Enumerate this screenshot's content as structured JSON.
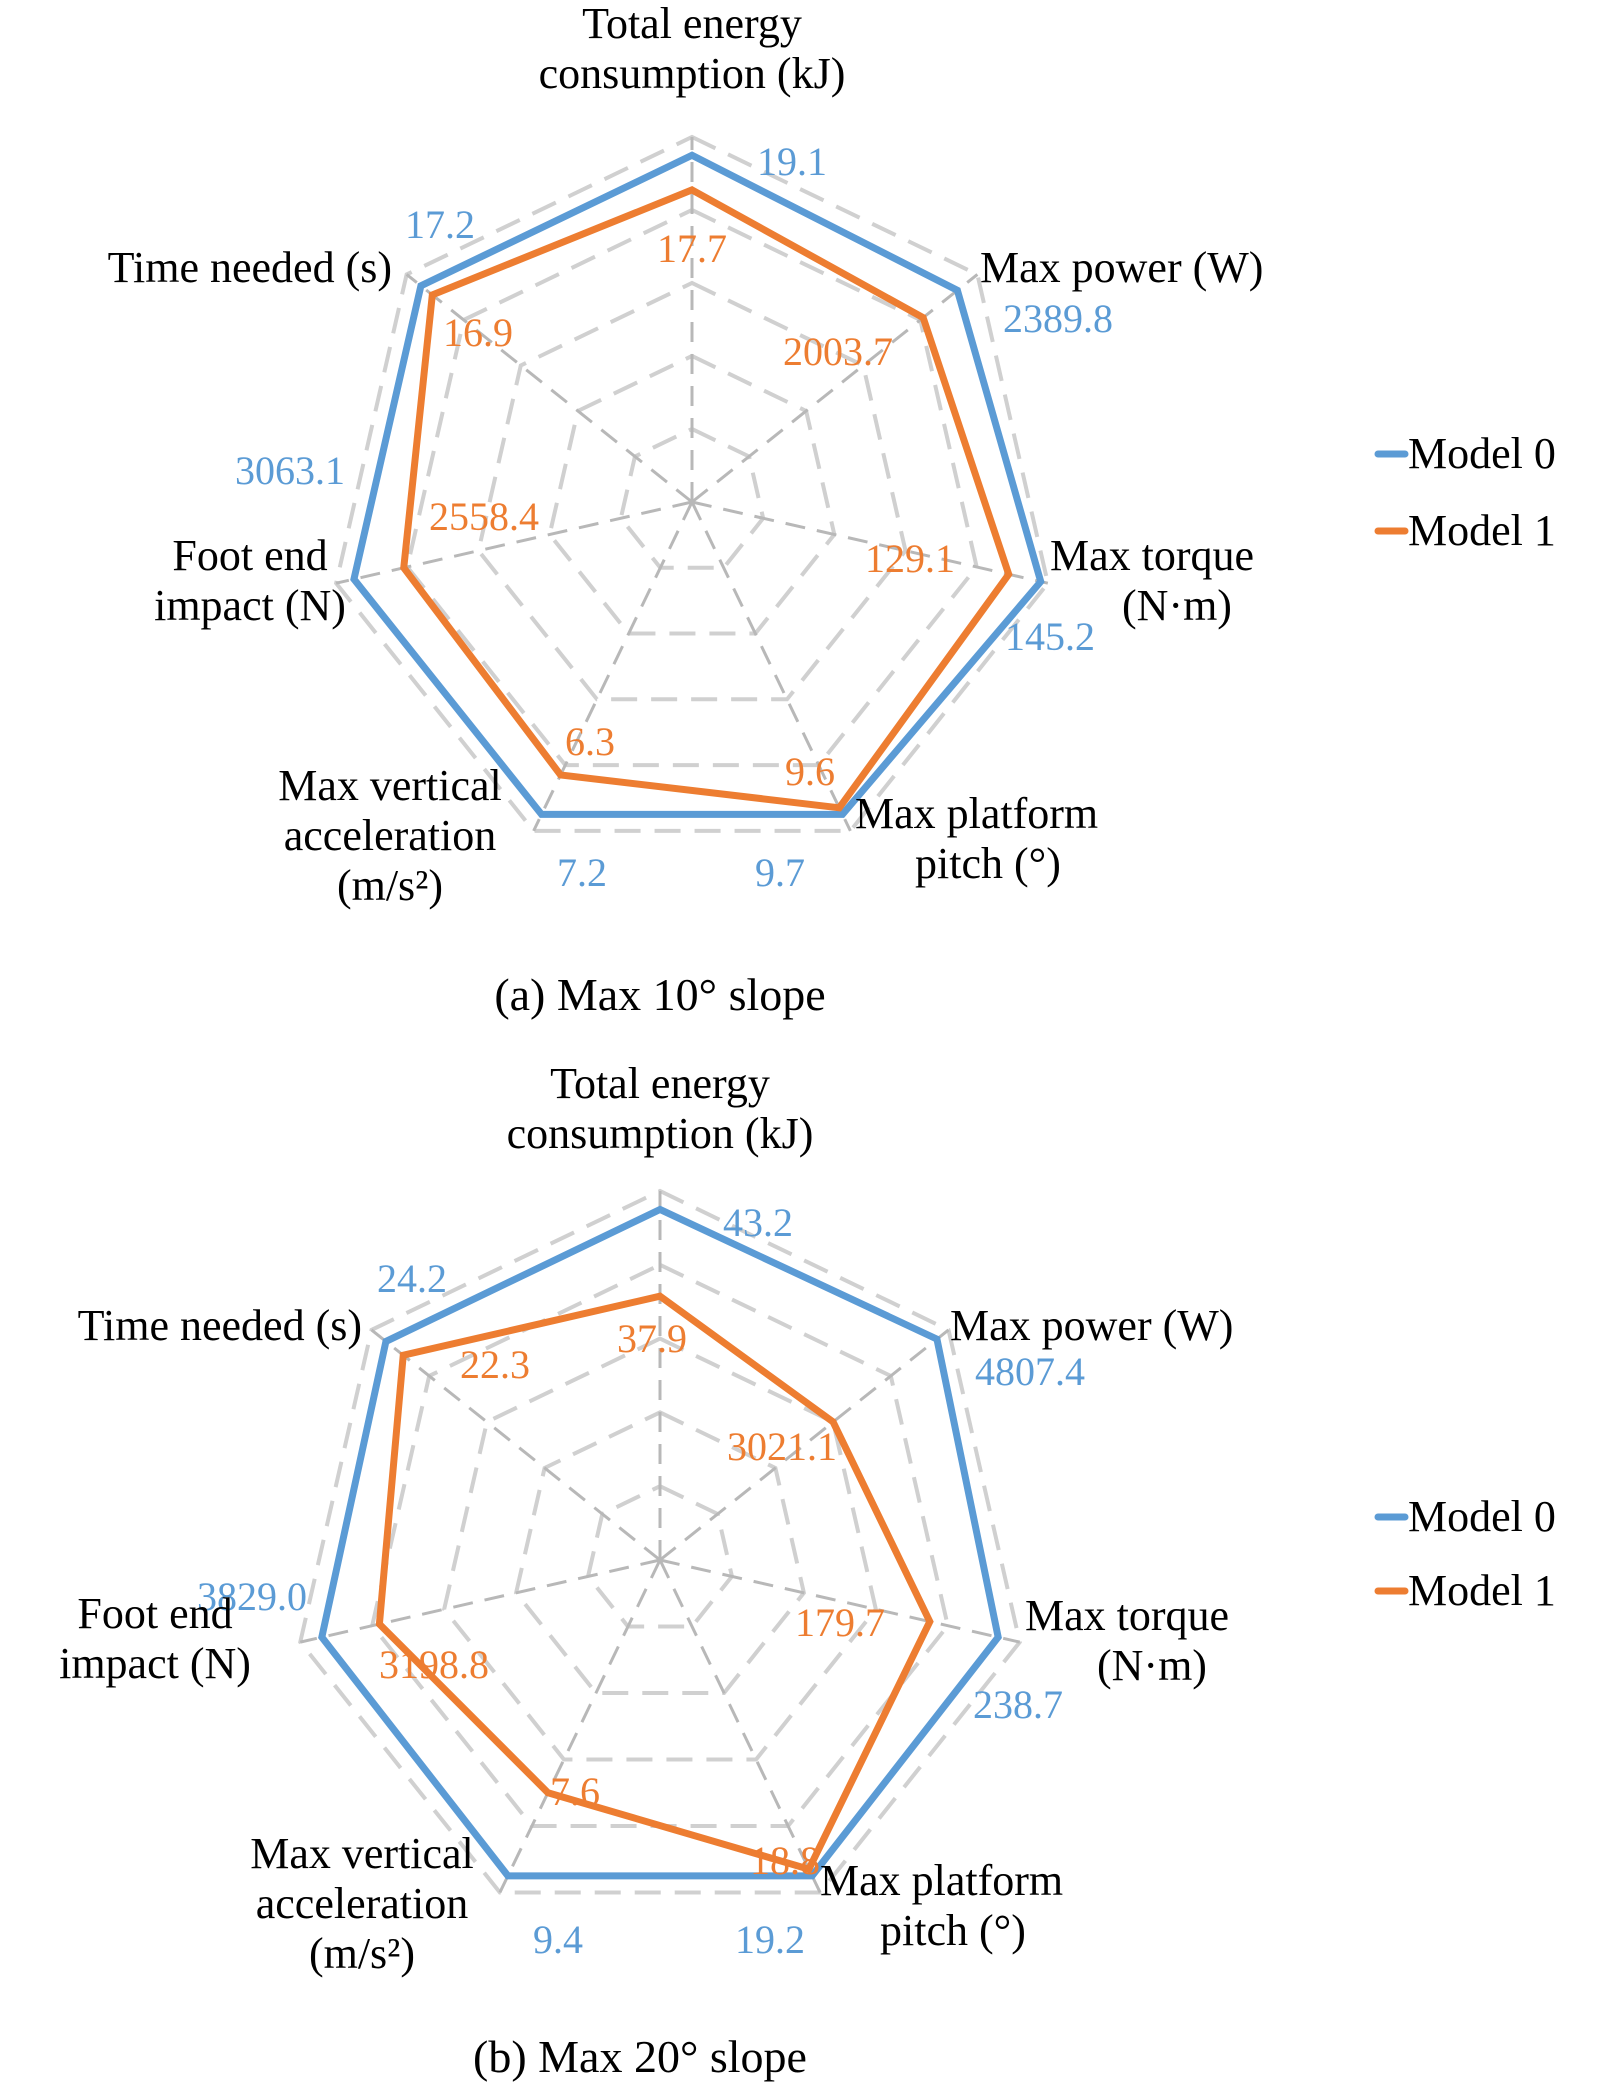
{
  "colors": {
    "model0": "#5B9BD5",
    "model1": "#ED7D31",
    "grid": "#D0D0D0",
    "spoke": "#B8B8B8"
  },
  "chart_data": [
    {
      "type": "radar",
      "caption": "(a) Max 10° slope",
      "axes": [
        {
          "label": [
            "Total energy",
            "consumption (kJ)"
          ]
        },
        {
          "label": [
            "Max power (W)"
          ]
        },
        {
          "label": [
            "Max torque",
            "(N·m)"
          ]
        },
        {
          "label": [
            "Max platform",
            "pitch (°)"
          ]
        },
        {
          "label": [
            "Max vertical",
            "acceleration",
            "(m/s²)"
          ]
        },
        {
          "label": [
            "Foot end",
            "impact (N)"
          ]
        },
        {
          "label": [
            "Time needed (s)"
          ]
        }
      ],
      "rings": 5,
      "grid": true,
      "legend_position": "right",
      "series": [
        {
          "name": "Model 0",
          "color_key": "model0",
          "values": [
            "19.1",
            "2389.8",
            "145.2",
            "9.7",
            "7.2",
            "3063.1",
            "17.2"
          ],
          "normalized": [
            0.95,
            0.93,
            0.98,
            0.95,
            0.95,
            0.95,
            0.95
          ]
        },
        {
          "name": "Model 1",
          "color_key": "model1",
          "values": [
            "17.7",
            "2003.7",
            "129.1",
            "9.6",
            "6.3",
            "2558.4",
            "16.9"
          ],
          "normalized": [
            0.855,
            0.81,
            0.89,
            0.93,
            0.83,
            0.81,
            0.91
          ]
        }
      ]
    },
    {
      "type": "radar",
      "caption": "(b) Max 20° slope",
      "axes": [
        {
          "label": [
            "Total energy",
            "consumption (kJ)"
          ]
        },
        {
          "label": [
            "Max power (W)"
          ]
        },
        {
          "label": [
            "Max torque",
            "(N·m)"
          ]
        },
        {
          "label": [
            "Max platform",
            "pitch (°)"
          ]
        },
        {
          "label": [
            "Max vertical",
            "acceleration",
            "(m/s²)"
          ]
        },
        {
          "label": [
            "Foot end",
            "impact (N)"
          ]
        },
        {
          "label": [
            "Time needed (s)"
          ]
        }
      ],
      "rings": 5,
      "grid": true,
      "legend_position": "right",
      "series": [
        {
          "name": "Model 0",
          "color_key": "model0",
          "values": [
            "43.2",
            "4807.4",
            "238.7",
            "19.2",
            "9.4",
            "3829.0",
            "24.2"
          ],
          "normalized": [
            0.95,
            0.96,
            0.94,
            0.95,
            0.95,
            0.94,
            0.95
          ]
        },
        {
          "name": "Model 1",
          "color_key": "model1",
          "values": [
            "37.9",
            "3021.1",
            "179.7",
            "18.8",
            "7.6",
            "3198.8",
            "22.3"
          ],
          "normalized": [
            0.715,
            0.6,
            0.75,
            0.93,
            0.7,
            0.78,
            0.89
          ]
        }
      ]
    }
  ]
}
